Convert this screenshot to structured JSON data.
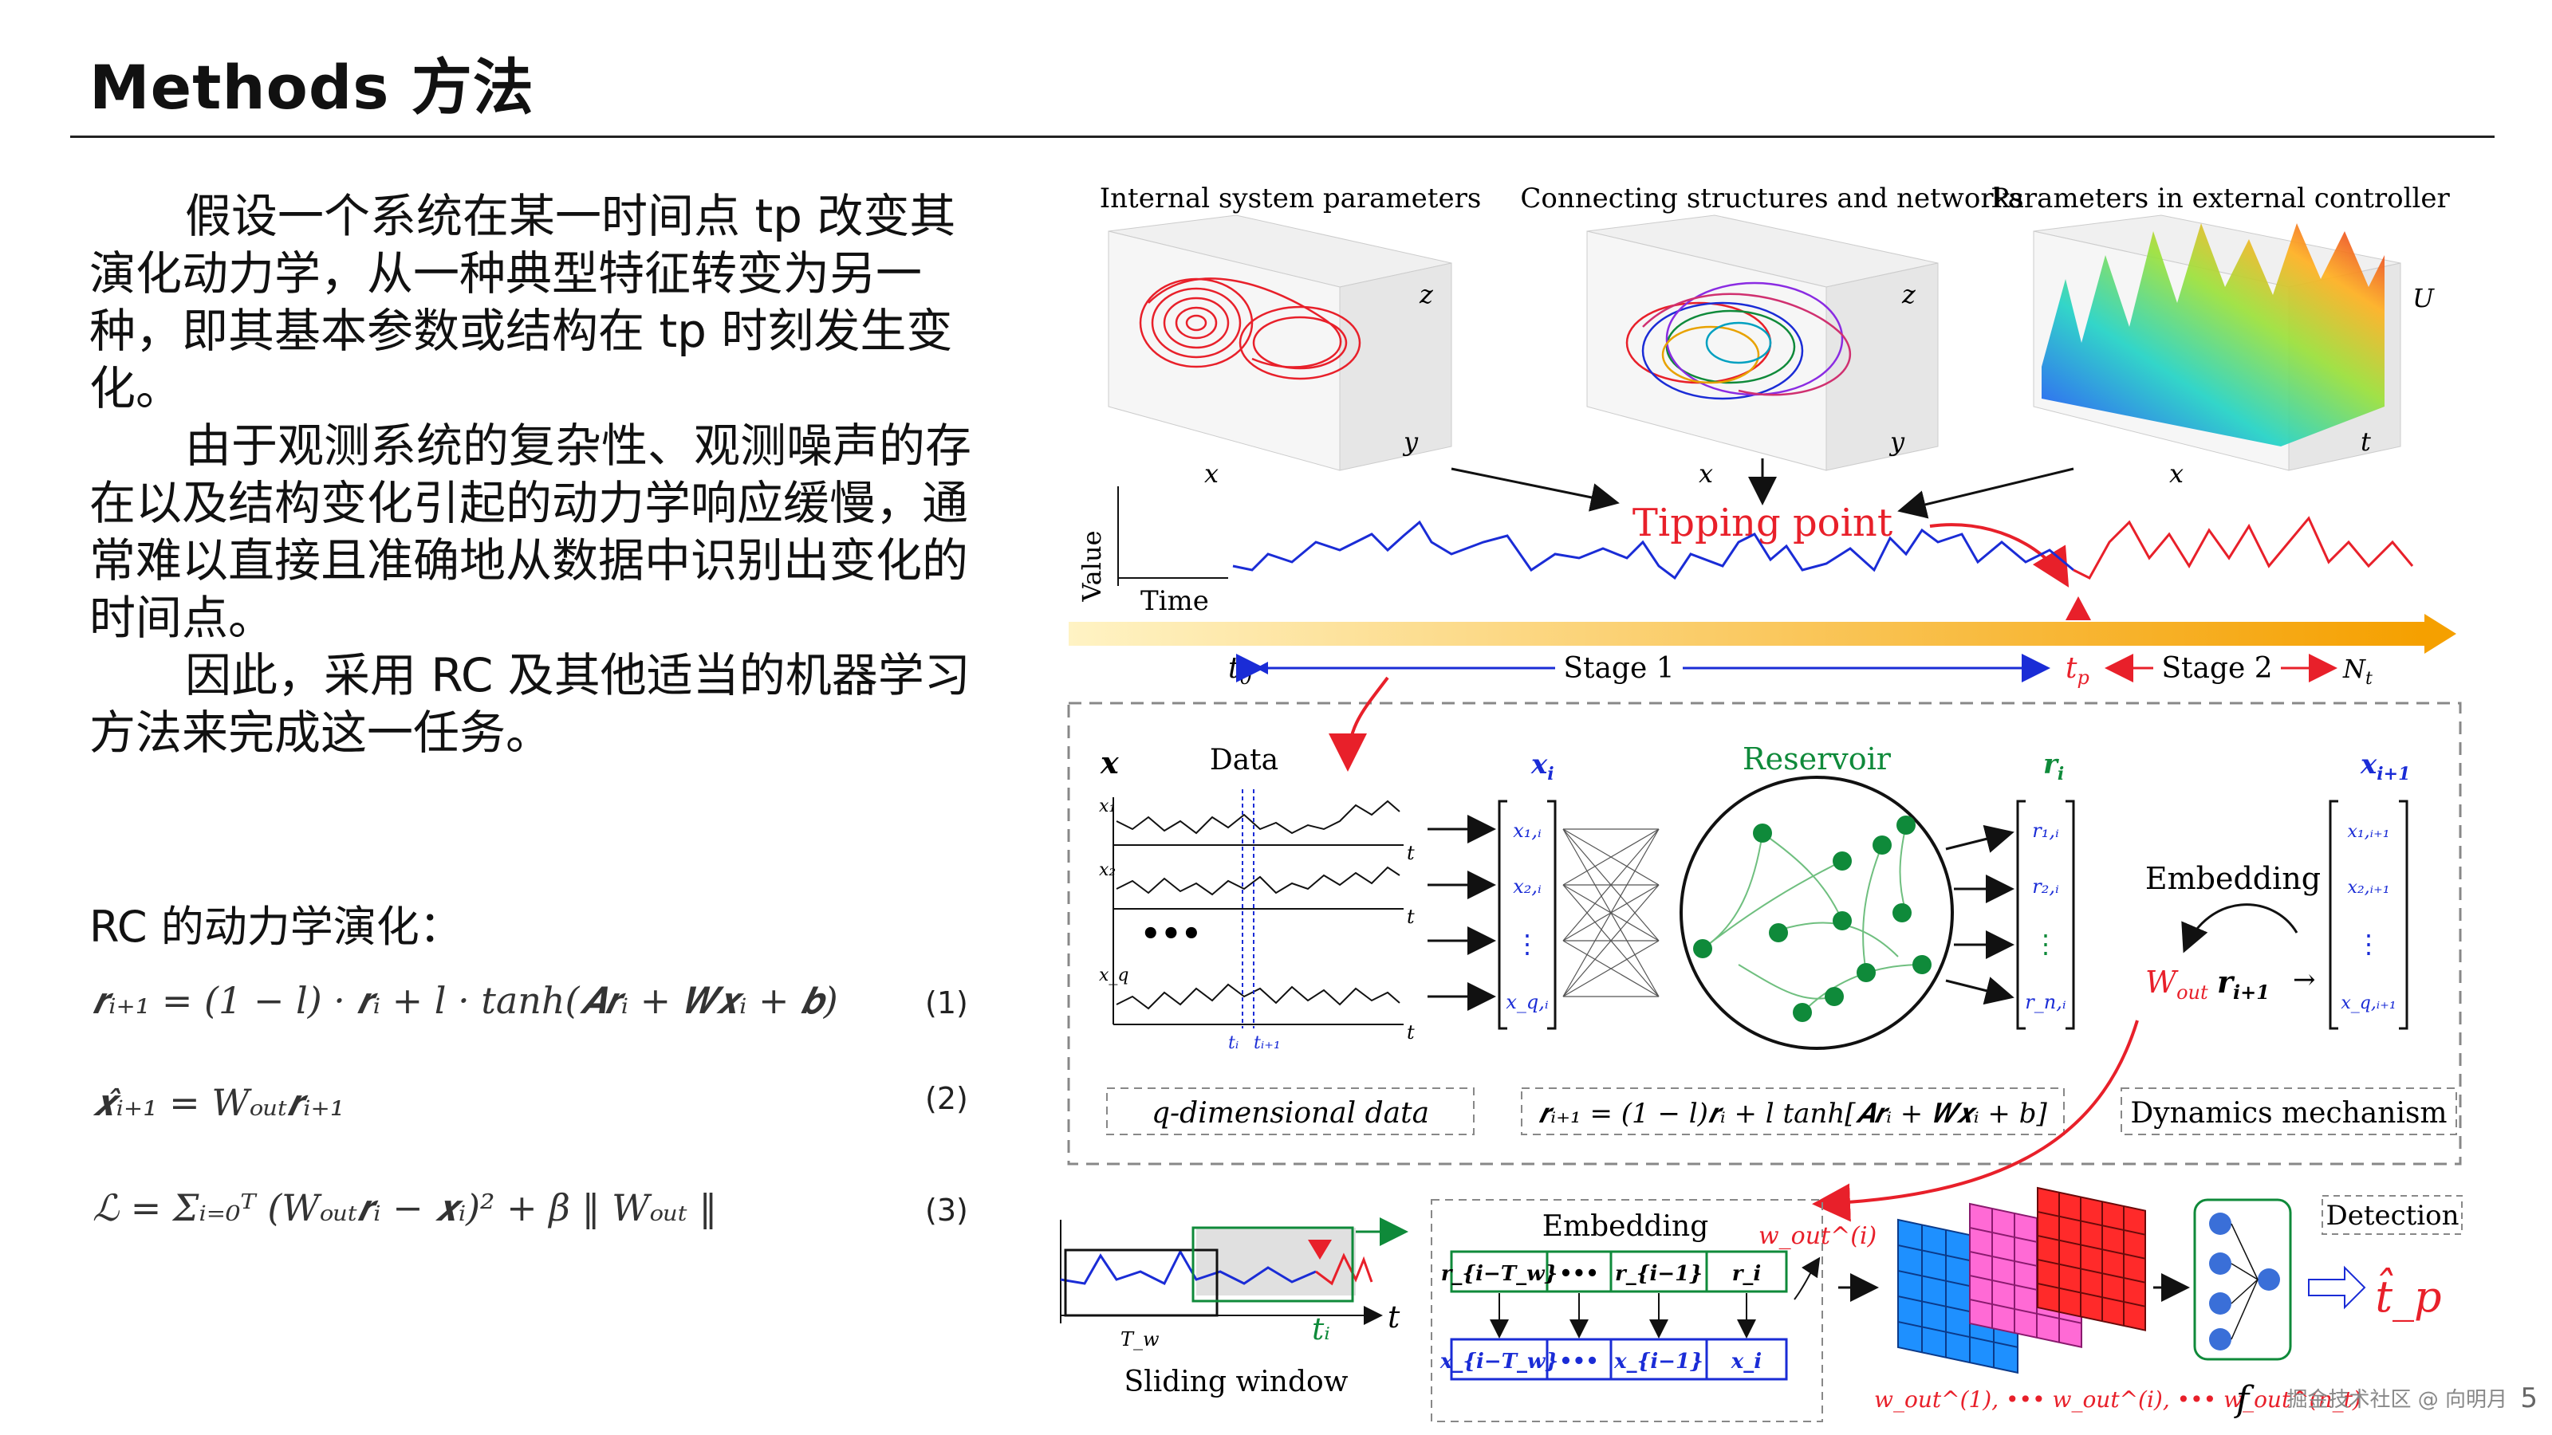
{
  "slide": {
    "title": "Methods 方法",
    "paragraphs": [
      "假设一个系统在某一时间点 tp 改变其演化动力学，从一种典型特征转变为另一种，即其基本参数或结构在 tp 时刻发生变化。",
      "由于观测系统的复杂性、观测噪声的存在以及结构变化引起的动力学响应缓慢，通常难以直接且准确地从数据中识别出变化的时间点。",
      "因此，采用 RC 及其他适当的机器学习方法来完成这一任务。"
    ],
    "rc_label": "RC 的动力学演化：",
    "equations": [
      {
        "text": "r_{i+1} = (1 − l)·r_i + l·tanh(A r_i + W x_i + b)",
        "display": "𝒓ᵢ₊₁ = (1 − 𝑙) · 𝒓ᵢ + 𝑙 · tanh(𝑨𝒓ᵢ + 𝑾𝒙ᵢ + 𝒃)",
        "number": "(1)"
      },
      {
        "text": "x̂_{i+1} = W_out r_{i+1}",
        "display": "𝒙̂ᵢ₊₁ = 𝑊ₒᵤₜ𝒓ᵢ₊₁",
        "number": "(2)"
      },
      {
        "text": "L = Σ_{i=0}^{T} (W_out r_i − x_i)^2 + β ‖W_out‖",
        "display": "ℒ = Σᵢ₌₀ᵀ (𝑊ₒᵤₜ𝒓ᵢ − 𝒙ᵢ)² + β ‖ 𝑊ₒᵤₜ ‖",
        "number": "(3)"
      }
    ],
    "footer": "掘金技术社区 @ 向明月",
    "page_number": "5"
  },
  "figure": {
    "panel_titles": [
      "Internal system parameters",
      "Connecting structures and networks",
      "Parameters in external controller"
    ],
    "axes": {
      "p1": [
        "x",
        "y",
        "z"
      ],
      "p2": [
        "x",
        "y",
        "z"
      ],
      "p3": [
        "x",
        "t",
        "U"
      ]
    },
    "tipping_point": "Tipping point",
    "value_label": "Value",
    "time_label": "Time",
    "timeline": {
      "t0": "t",
      "t0_sub": "0",
      "stage1": "Stage 1",
      "tp": "t",
      "tp_sub": "p",
      "stage2": "Stage 2",
      "nt": "N",
      "nt_sub": "t"
    },
    "mid": {
      "x_label": "x",
      "data_label": "Data",
      "xi_label": "x",
      "xi_sub": "i",
      "reservoir": "Reservoir",
      "ri_label": "r",
      "ri_sub": "i",
      "xi1_label": "x",
      "xi1_sub": "i+1",
      "embedding": "Embedding",
      "wout": "W",
      "wout_sub": "out",
      "r_next": "r",
      "r_next_sub": "i+1",
      "q_data": "q-dimensional data",
      "eq_box": "r_{i+1} = (1 − l)r_i + l tanh[A r_i + W x_i + b]",
      "eq_box_display": "𝒓ᵢ₊₁ = (1 − 𝑙)𝒓ᵢ + 𝑙 tanh[𝑨𝒓ᵢ + 𝑾𝒙ᵢ + 𝑏]",
      "dynamics": "Dynamics mechanism",
      "series_labels": [
        "x₁",
        "x₂",
        "x_q"
      ],
      "t_axis": "t",
      "ti_labels": [
        "tᵢ",
        "tᵢ₊₁"
      ],
      "col_x": [
        "x₁,ᵢ",
        "x₂,ᵢ",
        "⋮",
        "x_q,ᵢ"
      ],
      "col_r": [
        "r₁,ᵢ",
        "r₂,ᵢ",
        "⋮",
        "r_n,ᵢ"
      ],
      "col_x1": [
        "x₁,ᵢ₊₁",
        "x₂,ᵢ₊₁",
        "⋮",
        "x_q,ᵢ₊₁"
      ]
    },
    "bottom": {
      "sliding": "Sliding window",
      "tw": "T_w",
      "ti": "tᵢ",
      "t": "t",
      "embedding": "Embedding",
      "r_row": [
        "r_{i−T_w}",
        "•••",
        "r_{i−1}",
        "r_i"
      ],
      "x_row": [
        "x_{i−T_w}",
        "•••",
        "x_{i−1}",
        "x_i"
      ],
      "wout_i": "w_out^(i)",
      "wout_seq": "w_out^(1), ••• w_out^(i), ••• w_out^(n_t)",
      "detection": "Detection",
      "f": "f",
      "tp_hat": "t̂_p"
    },
    "colors": {
      "red": "#e8202a",
      "blue": "#1a2cd6",
      "green": "#0f8a3a",
      "orange": "#f5a623"
    }
  }
}
